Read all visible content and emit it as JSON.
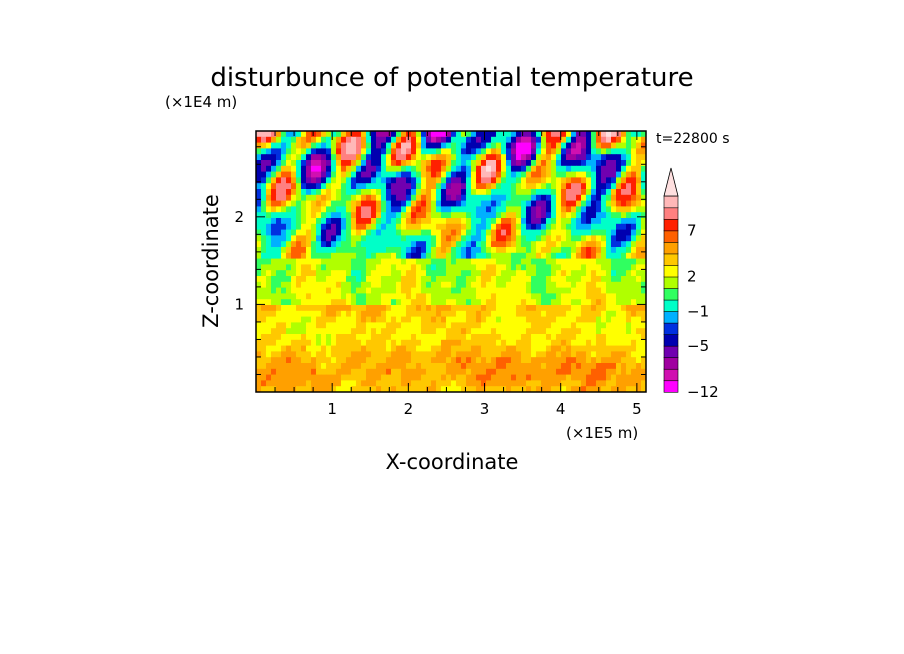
{
  "chart_data": {
    "type": "heatmap",
    "title": "disturbunce of potential temperature",
    "time_label": "t=22800 s",
    "xlabel": "X-coordinate",
    "ylabel": "Z-coordinate",
    "x_unit": "(×1E5 m)",
    "y_unit": "(×1E4 m)",
    "xlim": [
      0,
      5.12
    ],
    "ylim": [
      0,
      2.98
    ],
    "x_ticks": [
      "1",
      "2",
      "3",
      "4",
      "5"
    ],
    "y_ticks": [
      "1",
      "2"
    ],
    "colorbar": {
      "levels": [
        -12,
        -11,
        -9,
        -7,
        -5,
        -4,
        -3,
        -1,
        0,
        1,
        2,
        3,
        4,
        5,
        7,
        9,
        11
      ],
      "colors": [
        "#ff00ff",
        "#d010b0",
        "#a000a0",
        "#7000b0",
        "#0000b0",
        "#0030e0",
        "#00b0ff",
        "#00ffc8",
        "#30ff60",
        "#b0ff00",
        "#ffff00",
        "#ffc800",
        "#ffa000",
        "#ff6000",
        "#ff2000",
        "#ff8080",
        "#ffb8b8",
        "#ffe0e0"
      ],
      "tick_labels": [
        "7",
        "2",
        "−1",
        "−5",
        "−12"
      ],
      "tick_values": [
        7,
        2,
        -1,
        -5,
        -12
      ]
    }
  }
}
